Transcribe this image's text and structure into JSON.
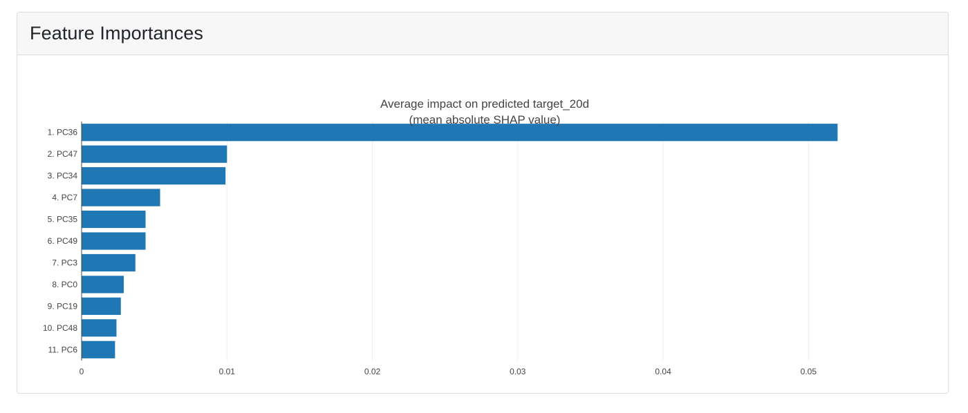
{
  "card": {
    "title": "Feature Importances"
  },
  "chart_data": {
    "type": "bar",
    "orientation": "horizontal",
    "title": "Average impact on predicted target_20d",
    "subtitle": "(mean absolute SHAP value)",
    "categories": [
      "1. PC36",
      "2. PC47",
      "3. PC34",
      "4. PC7",
      "5. PC35",
      "6. PC49",
      "7. PC3",
      "8. PC0",
      "9. PC19",
      "10. PC48",
      "11. PC6"
    ],
    "values": [
      0.052,
      0.01,
      0.0099,
      0.0054,
      0.0044,
      0.0044,
      0.0037,
      0.0029,
      0.0027,
      0.0024,
      0.0023
    ],
    "xlim": [
      0,
      0.0555
    ],
    "xticks": [
      0,
      0.01,
      0.02,
      0.03,
      0.04,
      0.05
    ],
    "xtick_labels": [
      "0",
      "0.01",
      "0.02",
      "0.03",
      "0.04",
      "0.05"
    ],
    "grid": true,
    "bar_color": "#1f77b4"
  }
}
